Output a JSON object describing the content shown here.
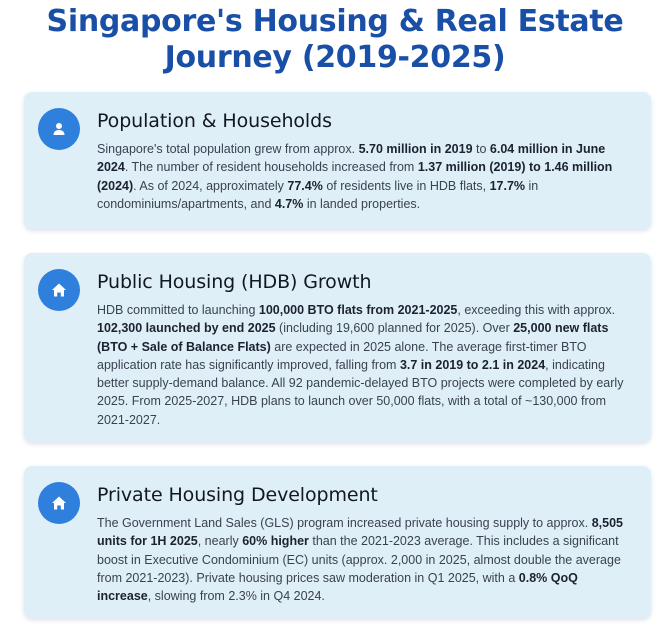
{
  "page": {
    "title": "Singapore's Housing & Real Estate Journey (2019-2025)"
  },
  "sections": [
    {
      "icon": "person-icon",
      "title": "Population & Households",
      "body": [
        {
          "t": "Singapore's total population grew from approx. ",
          "b": false
        },
        {
          "t": "5.70 million in 2019",
          "b": true
        },
        {
          "t": " to ",
          "b": false
        },
        {
          "t": "6.04 million in June 2024",
          "b": true
        },
        {
          "t": ". The number of resident households increased from ",
          "b": false
        },
        {
          "t": "1.37 million (2019) to 1.46 million (2024)",
          "b": true
        },
        {
          "t": ". As of 2024, approximately ",
          "b": false
        },
        {
          "t": "77.4%",
          "b": true
        },
        {
          "t": " of residents live in HDB flats, ",
          "b": false
        },
        {
          "t": "17.7%",
          "b": true
        },
        {
          "t": " in condominiums/apartments, and ",
          "b": false
        },
        {
          "t": "4.7%",
          "b": true
        },
        {
          "t": " in landed properties.",
          "b": false
        }
      ]
    },
    {
      "icon": "house-icon",
      "title": "Public Housing (HDB) Growth",
      "body": [
        {
          "t": "HDB committed to launching ",
          "b": false
        },
        {
          "t": "100,000 BTO flats from 2021-2025",
          "b": true
        },
        {
          "t": ", exceeding this with approx. ",
          "b": false
        },
        {
          "t": "102,300 launched by end 2025",
          "b": true
        },
        {
          "t": " (including 19,600 planned for 2025). Over ",
          "b": false
        },
        {
          "t": "25,000 new flats (BTO + Sale of Balance Flats)",
          "b": true
        },
        {
          "t": " are expected in 2025 alone. The average first-timer BTO application rate has significantly improved, falling from ",
          "b": false
        },
        {
          "t": "3.7 in 2019 to 2.1 in 2024",
          "b": true
        },
        {
          "t": ", indicating better supply-demand balance. All 92 pandemic-delayed BTO projects were completed by early 2025. From 2025-2027, HDB plans to launch over 50,000 flats, with a total of ~130,000 from 2021-2027.",
          "b": false
        }
      ]
    },
    {
      "icon": "house-icon",
      "title": "Private Housing Development",
      "body": [
        {
          "t": "The Government Land Sales (GLS) program increased private housing supply to approx. ",
          "b": false
        },
        {
          "t": "8,505 units for 1H 2025",
          "b": true
        },
        {
          "t": ", nearly ",
          "b": false
        },
        {
          "t": "60% higher",
          "b": true
        },
        {
          "t": " than the 2021-2023 average. This includes a significant boost in Executive Condominium (EC) units (approx. 2,000 in 2025, almost double the average from 2021-2023). Private housing prices saw moderation in Q1 2025, with a ",
          "b": false
        },
        {
          "t": "0.8% QoQ increase",
          "b": true
        },
        {
          "t": ", slowing from 2.3% in Q4 2024.",
          "b": false
        }
      ]
    }
  ]
}
